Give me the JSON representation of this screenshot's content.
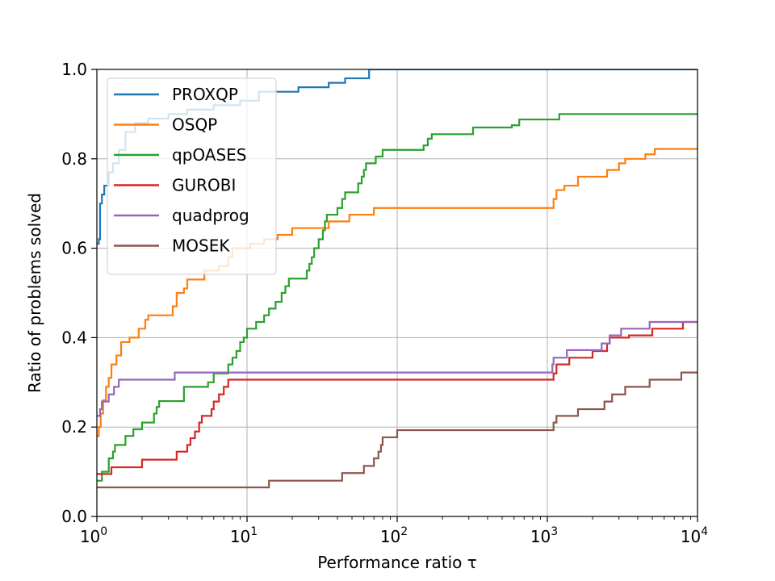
{
  "chart_data": {
    "type": "line",
    "step": true,
    "xscale": "log",
    "xlim": [
      1,
      10000
    ],
    "ylim": [
      0,
      1
    ],
    "grid": true,
    "xlabel": "Performance ratio τ",
    "ylabel": "Ratio of problems solved",
    "legend_position": "top-left",
    "xticks": [
      {
        "value": 1,
        "base": "10",
        "exp": "0"
      },
      {
        "value": 10,
        "base": "10",
        "exp": "1"
      },
      {
        "value": 100,
        "base": "10",
        "exp": "2"
      },
      {
        "value": 1000,
        "base": "10",
        "exp": "3"
      },
      {
        "value": 10000,
        "base": "10",
        "exp": "4"
      }
    ],
    "yticks": [
      {
        "value": 0,
        "label": "0.0"
      },
      {
        "value": 0.2,
        "label": "0.2"
      },
      {
        "value": 0.4,
        "label": "0.4"
      },
      {
        "value": 0.6,
        "label": "0.6"
      },
      {
        "value": 0.8,
        "label": "0.8"
      },
      {
        "value": 1,
        "label": "1.0"
      }
    ],
    "series": [
      {
        "name": "PROXQP",
        "color": "#1f77b4",
        "points": [
          [
            1,
            0.61
          ],
          [
            1.03,
            0.62
          ],
          [
            1.05,
            0.7
          ],
          [
            1.08,
            0.72
          ],
          [
            1.12,
            0.74
          ],
          [
            1.2,
            0.77
          ],
          [
            1.28,
            0.79
          ],
          [
            1.4,
            0.82
          ],
          [
            1.55,
            0.86
          ],
          [
            1.8,
            0.88
          ],
          [
            2.2,
            0.89
          ],
          [
            3,
            0.9
          ],
          [
            4,
            0.91
          ],
          [
            6,
            0.92
          ],
          [
            9,
            0.93
          ],
          [
            12,
            0.95
          ],
          [
            22,
            0.96
          ],
          [
            35,
            0.97
          ],
          [
            45,
            0.98
          ],
          [
            65,
            1.0
          ],
          [
            10000,
            1.0
          ]
        ]
      },
      {
        "name": "OSQP",
        "color": "#ff7f0e",
        "points": [
          [
            1,
            0.18
          ],
          [
            1.03,
            0.2
          ],
          [
            1.06,
            0.23
          ],
          [
            1.1,
            0.26
          ],
          [
            1.15,
            0.29
          ],
          [
            1.2,
            0.31
          ],
          [
            1.25,
            0.34
          ],
          [
            1.35,
            0.36
          ],
          [
            1.45,
            0.39
          ],
          [
            1.65,
            0.4
          ],
          [
            1.9,
            0.42
          ],
          [
            2.1,
            0.44
          ],
          [
            2.2,
            0.45
          ],
          [
            3.2,
            0.47
          ],
          [
            3.4,
            0.5
          ],
          [
            3.8,
            0.51
          ],
          [
            4,
            0.53
          ],
          [
            5.2,
            0.55
          ],
          [
            6.5,
            0.56
          ],
          [
            7.5,
            0.58
          ],
          [
            8,
            0.6
          ],
          [
            10.5,
            0.61
          ],
          [
            13,
            0.62
          ],
          [
            16,
            0.63
          ],
          [
            20,
            0.645
          ],
          [
            35,
            0.66
          ],
          [
            48,
            0.675
          ],
          [
            70,
            0.69
          ],
          [
            1100,
            0.71
          ],
          [
            1150,
            0.73
          ],
          [
            1300,
            0.74
          ],
          [
            1600,
            0.76
          ],
          [
            2500,
            0.775
          ],
          [
            3000,
            0.79
          ],
          [
            3300,
            0.8
          ],
          [
            4500,
            0.81
          ],
          [
            5200,
            0.822
          ],
          [
            10000,
            0.822
          ]
        ]
      },
      {
        "name": "qpOASES",
        "color": "#2ca02c",
        "points": [
          [
            1,
            0.08
          ],
          [
            1.08,
            0.1
          ],
          [
            1.2,
            0.13
          ],
          [
            1.28,
            0.145
          ],
          [
            1.32,
            0.16
          ],
          [
            1.55,
            0.18
          ],
          [
            1.75,
            0.195
          ],
          [
            2,
            0.21
          ],
          [
            2.4,
            0.23
          ],
          [
            2.5,
            0.245
          ],
          [
            2.6,
            0.258
          ],
          [
            3.8,
            0.29
          ],
          [
            5.2,
            0.29
          ],
          [
            5.5,
            0.3
          ],
          [
            6,
            0.32
          ],
          [
            7.5,
            0.34
          ],
          [
            8,
            0.355
          ],
          [
            8.5,
            0.37
          ],
          [
            9,
            0.39
          ],
          [
            9.5,
            0.4
          ],
          [
            10,
            0.42
          ],
          [
            11.5,
            0.435
          ],
          [
            13,
            0.45
          ],
          [
            14,
            0.465
          ],
          [
            15.5,
            0.48
          ],
          [
            17,
            0.5
          ],
          [
            18,
            0.515
          ],
          [
            19,
            0.532
          ],
          [
            25,
            0.55
          ],
          [
            26,
            0.565
          ],
          [
            27,
            0.58
          ],
          [
            28,
            0.6
          ],
          [
            30,
            0.62
          ],
          [
            32,
            0.64
          ],
          [
            33,
            0.66
          ],
          [
            34,
            0.675
          ],
          [
            40,
            0.69
          ],
          [
            43,
            0.71
          ],
          [
            45,
            0.725
          ],
          [
            55,
            0.745
          ],
          [
            58,
            0.76
          ],
          [
            60,
            0.775
          ],
          [
            62,
            0.79
          ],
          [
            72,
            0.805
          ],
          [
            80,
            0.82
          ],
          [
            150,
            0.83
          ],
          [
            160,
            0.845
          ],
          [
            170,
            0.855
          ],
          [
            320,
            0.87
          ],
          [
            580,
            0.875
          ],
          [
            650,
            0.888
          ],
          [
            1200,
            0.9
          ],
          [
            10000,
            0.902
          ]
        ]
      },
      {
        "name": "GUROBI",
        "color": "#d62728",
        "points": [
          [
            1,
            0.095
          ],
          [
            1.25,
            0.11
          ],
          [
            2,
            0.127
          ],
          [
            3.4,
            0.145
          ],
          [
            4,
            0.16
          ],
          [
            4.2,
            0.175
          ],
          [
            4.5,
            0.19
          ],
          [
            4.8,
            0.21
          ],
          [
            5,
            0.225
          ],
          [
            5.8,
            0.24
          ],
          [
            6,
            0.257
          ],
          [
            6.5,
            0.273
          ],
          [
            7,
            0.29
          ],
          [
            7.5,
            0.306
          ],
          [
            1100,
            0.32
          ],
          [
            1150,
            0.34
          ],
          [
            1400,
            0.355
          ],
          [
            2000,
            0.37
          ],
          [
            2500,
            0.387
          ],
          [
            2600,
            0.4
          ],
          [
            3500,
            0.405
          ],
          [
            5000,
            0.42
          ],
          [
            8000,
            0.435
          ],
          [
            10000,
            0.435
          ]
        ]
      },
      {
        "name": "quadprog",
        "color": "#9467bd",
        "points": [
          [
            1,
            0.225
          ],
          [
            1.05,
            0.24
          ],
          [
            1.08,
            0.257
          ],
          [
            1.2,
            0.273
          ],
          [
            1.3,
            0.29
          ],
          [
            1.4,
            0.306
          ],
          [
            3.3,
            0.322
          ],
          [
            1080,
            0.34
          ],
          [
            1100,
            0.355
          ],
          [
            1350,
            0.372
          ],
          [
            2300,
            0.387
          ],
          [
            2600,
            0.405
          ],
          [
            3100,
            0.42
          ],
          [
            4800,
            0.435
          ],
          [
            10000,
            0.435
          ]
        ]
      },
      {
        "name": "MOSEK",
        "color": "#8c564b",
        "points": [
          [
            1,
            0.065
          ],
          [
            14,
            0.08
          ],
          [
            43,
            0.097
          ],
          [
            60,
            0.113
          ],
          [
            70,
            0.13
          ],
          [
            75,
            0.145
          ],
          [
            78,
            0.16
          ],
          [
            80,
            0.177
          ],
          [
            100,
            0.193
          ],
          [
            1100,
            0.21
          ],
          [
            1150,
            0.225
          ],
          [
            1600,
            0.24
          ],
          [
            2400,
            0.257
          ],
          [
            2700,
            0.273
          ],
          [
            3300,
            0.29
          ],
          [
            4800,
            0.306
          ],
          [
            7800,
            0.322
          ],
          [
            10000,
            0.322
          ]
        ]
      }
    ]
  }
}
